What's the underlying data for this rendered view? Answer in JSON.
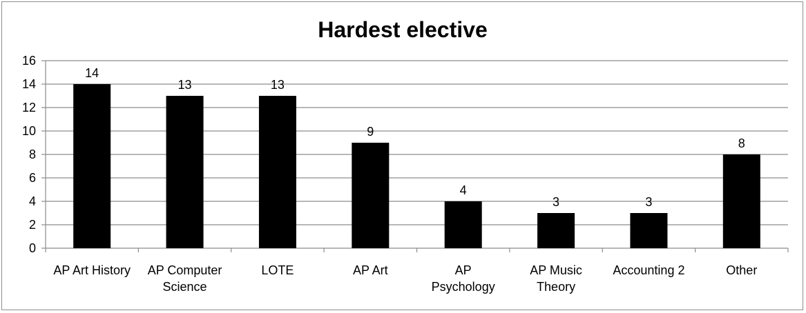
{
  "chart_data": {
    "type": "bar",
    "title": "Hardest elective",
    "categories": [
      [
        "AP Art History"
      ],
      [
        "AP Computer",
        "Science"
      ],
      [
        "LOTE"
      ],
      [
        "AP Art"
      ],
      [
        "AP",
        "Psychology"
      ],
      [
        "AP Music",
        "Theory"
      ],
      [
        "Accounting 2"
      ],
      [
        "Other"
      ]
    ],
    "values": [
      14,
      13,
      13,
      9,
      4,
      3,
      3,
      8
    ],
    "ylim": [
      0,
      16
    ],
    "yticks": [
      0,
      2,
      4,
      6,
      8,
      10,
      12,
      14,
      16
    ],
    "grid": true,
    "legend": "none",
    "colors": {
      "bar": "#000000",
      "grid": "#8c8c8c",
      "axis": "#8c8c8c"
    }
  }
}
